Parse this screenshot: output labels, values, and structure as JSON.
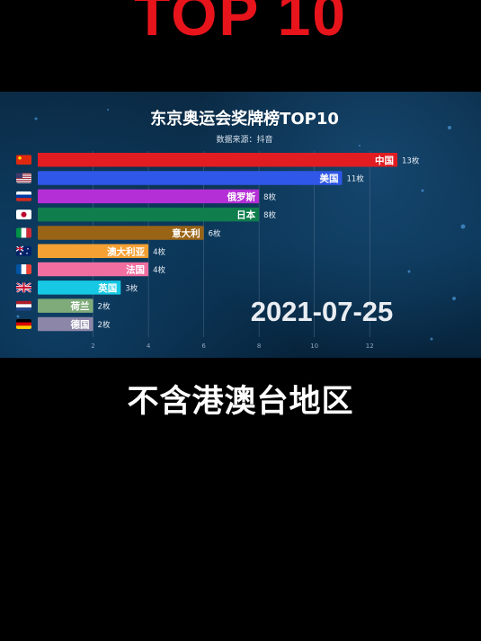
{
  "headline": "TOP 10",
  "caption": "不含港澳台地区",
  "chart_data": {
    "type": "bar",
    "orientation": "horizontal",
    "title": "东京奥运会奖牌榜TOP10",
    "subtitle": "数据来源：抖音",
    "date": "2021-07-25",
    "value_suffix": "枚",
    "xlim": [
      0,
      13
    ],
    "x_ticks": [
      2,
      4,
      6,
      8,
      10,
      12
    ],
    "grid": true,
    "categories": [
      "中国",
      "美国",
      "俄罗斯",
      "日本",
      "意大利",
      "澳大利亚",
      "法国",
      "英国",
      "荷兰",
      "德国"
    ],
    "values": [
      13,
      11,
      8,
      8,
      6,
      4,
      4,
      3,
      2,
      2
    ],
    "value_labels": [
      "13枚",
      "11枚",
      "8枚",
      "8枚",
      "6枚",
      "4枚",
      "4枚",
      "3枚",
      "2枚",
      "2枚"
    ],
    "bar_colors": [
      "#e11d22",
      "#2f57e8",
      "#b42fd6",
      "#0f7d4c",
      "#9a6416",
      "#f5a033",
      "#f06fa0",
      "#16c8e4",
      "#7fab7a",
      "#8c86a8"
    ],
    "flags": [
      "flag-china-icon",
      "flag-usa-icon",
      "flag-russia-icon",
      "flag-japan-icon",
      "flag-italy-icon",
      "flag-australia-icon",
      "flag-france-icon",
      "flag-uk-icon",
      "flag-netherlands-icon",
      "flag-germany-icon"
    ]
  }
}
